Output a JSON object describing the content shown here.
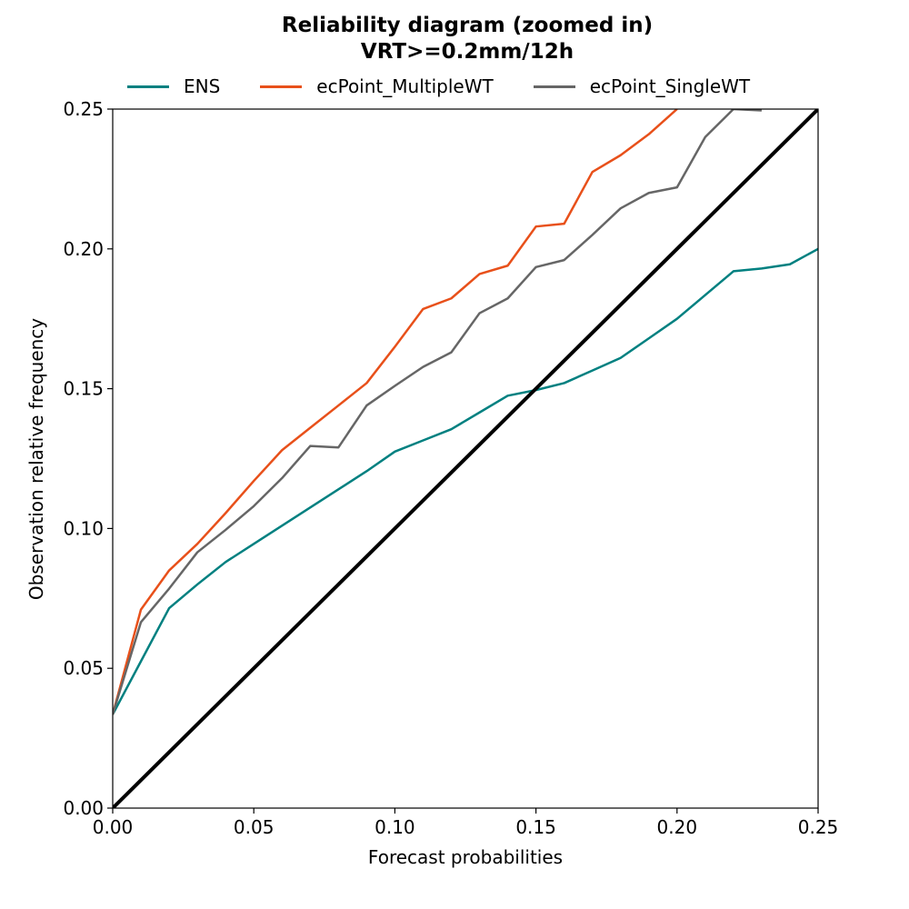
{
  "chart_data": {
    "type": "line",
    "title": "Reliability diagram (zoomed in)",
    "subtitle": "VRT>=0.2mm/12h",
    "xlabel": "Forecast probabilities",
    "ylabel": "Observation relative frequency",
    "xlim": [
      0,
      0.25
    ],
    "ylim": [
      0,
      0.25
    ],
    "xticks": [
      "0.00",
      "0.05",
      "0.10",
      "0.15",
      "0.20",
      "0.25"
    ],
    "yticks": [
      "0.00",
      "0.05",
      "0.10",
      "0.15",
      "0.20",
      "0.25"
    ],
    "grid": false,
    "legend_position": "top",
    "reference_line": {
      "x": [
        0,
        0.25
      ],
      "y": [
        0,
        0.25
      ],
      "color": "#000000"
    },
    "series": [
      {
        "name": "ENS",
        "color": "#008080",
        "x": [
          0,
          0.01,
          0.02,
          0.03,
          0.04,
          0.05,
          0.06,
          0.07,
          0.08,
          0.09,
          0.1,
          0.11,
          0.12,
          0.13,
          0.14,
          0.15,
          0.16,
          0.17,
          0.18,
          0.19,
          0.2,
          0.21,
          0.22,
          0.23,
          0.24,
          0.25
        ],
        "y": [
          0.0335,
          0.0525,
          0.0715,
          0.08,
          0.088,
          0.0945,
          0.101,
          0.1075,
          0.114,
          0.1205,
          0.1275,
          0.1315,
          0.1355,
          0.1415,
          0.1475,
          0.1495,
          0.152,
          0.1565,
          0.161,
          0.168,
          0.175,
          0.1835,
          0.192,
          0.193,
          0.1945,
          0.2
        ]
      },
      {
        "name": "ecPoint_MultipleWT",
        "color": "#e8501a",
        "x": [
          0,
          0.01,
          0.02,
          0.03,
          0.04,
          0.05,
          0.06,
          0.07,
          0.08,
          0.09,
          0.1,
          0.11,
          0.12,
          0.13,
          0.14,
          0.15,
          0.16,
          0.17,
          0.18,
          0.19,
          0.2
        ],
        "y": [
          0.0335,
          0.071,
          0.085,
          0.0945,
          0.1055,
          0.117,
          0.128,
          0.136,
          0.144,
          0.152,
          0.165,
          0.1785,
          0.1823,
          0.191,
          0.194,
          0.208,
          0.209,
          0.2275,
          0.2335,
          0.241,
          0.25
        ]
      },
      {
        "name": "ecPoint_SingleWT",
        "color": "#666666",
        "x": [
          0,
          0.01,
          0.02,
          0.03,
          0.04,
          0.05,
          0.06,
          0.07,
          0.08,
          0.09,
          0.1,
          0.11,
          0.12,
          0.13,
          0.14,
          0.15,
          0.16,
          0.17,
          0.18,
          0.19,
          0.2,
          0.21,
          0.22,
          0.23
        ],
        "y": [
          0.0335,
          0.0665,
          0.0785,
          0.0915,
          0.0995,
          0.108,
          0.118,
          0.1295,
          0.129,
          0.144,
          0.151,
          0.1578,
          0.163,
          0.177,
          0.1823,
          0.1935,
          0.196,
          0.205,
          0.2145,
          0.22,
          0.222,
          0.24,
          0.25,
          0.2495
        ]
      }
    ]
  }
}
